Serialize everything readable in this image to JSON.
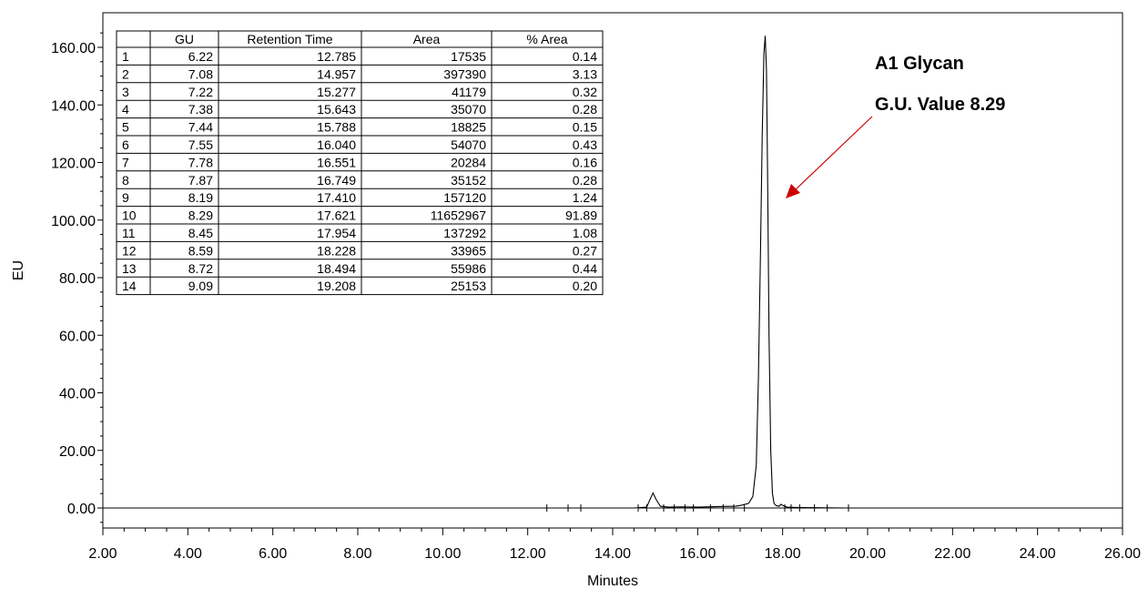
{
  "chart_data": {
    "type": "line",
    "title": "",
    "xlabel": "Minutes",
    "ylabel": "EU",
    "xlim": [
      2.0,
      26.0
    ],
    "ylim": [
      -8.0,
      170.0
    ],
    "x_ticks": [
      "2.00",
      "4.00",
      "6.00",
      "8.00",
      "10.00",
      "12.00",
      "14.00",
      "16.00",
      "18.00",
      "20.00",
      "22.00",
      "24.00",
      "26.00"
    ],
    "x_tick_values": [
      2,
      4,
      6,
      8,
      10,
      12,
      14,
      16,
      18,
      20,
      22,
      24,
      26
    ],
    "y_ticks": [
      "0.00",
      "20.00",
      "40.00",
      "60.00",
      "80.00",
      "100.00",
      "120.00",
      "140.00",
      "160.00"
    ],
    "y_tick_values": [
      0,
      20,
      40,
      60,
      80,
      100,
      120,
      140,
      160
    ],
    "grid": false,
    "series": [
      {
        "color": "#000000",
        "x": [
          2.0,
          11.5,
          12.5,
          14.5,
          14.8,
          14.88,
          14.95,
          15.02,
          15.12,
          15.3,
          15.6,
          16.0,
          16.5,
          16.9,
          17.05,
          17.2,
          17.3,
          17.38,
          17.43,
          17.48,
          17.52,
          17.56,
          17.59,
          17.62,
          17.65,
          17.68,
          17.72,
          17.76,
          17.8,
          17.85,
          17.92,
          17.96,
          18.0,
          18.1,
          18.3,
          18.5,
          19.0,
          19.5,
          26.0
        ],
        "y": [
          0,
          0,
          0,
          0,
          0.3,
          3.0,
          5.2,
          3.0,
          0.6,
          0.3,
          0.4,
          0.3,
          0.5,
          0.6,
          1.0,
          1.6,
          4.0,
          15.0,
          45.0,
          90.0,
          130.0,
          158.0,
          164.0,
          152.0,
          110.0,
          60.0,
          20.0,
          5.0,
          1.5,
          0.8,
          0.6,
          1.3,
          0.9,
          0.3,
          0.2,
          0.15,
          0.05,
          0,
          0
        ]
      }
    ],
    "integration_marks_x": [
      12.45,
      12.95,
      13.25,
      14.6,
      14.8,
      15.2,
      15.45,
      15.7,
      15.9,
      16.3,
      16.6,
      16.85,
      17.1,
      18.05,
      18.2,
      18.4,
      18.75,
      19.05,
      19.55
    ],
    "table": {
      "headers": [
        "",
        "GU",
        "Retention Time",
        "Area",
        "% Area"
      ],
      "rows": [
        [
          "1",
          "6.22",
          "12.785",
          "17535",
          "0.14"
        ],
        [
          "2",
          "7.08",
          "14.957",
          "397390",
          "3.13"
        ],
        [
          "3",
          "7.22",
          "15.277",
          "41179",
          "0.32"
        ],
        [
          "4",
          "7.38",
          "15.643",
          "35070",
          "0.28"
        ],
        [
          "5",
          "7.44",
          "15.788",
          "18825",
          "0.15"
        ],
        [
          "6",
          "7.55",
          "16.040",
          "54070",
          "0.43"
        ],
        [
          "7",
          "7.78",
          "16.551",
          "20284",
          "0.16"
        ],
        [
          "8",
          "7.87",
          "16.749",
          "35152",
          "0.28"
        ],
        [
          "9",
          "8.19",
          "17.410",
          "157120",
          "1.24"
        ],
        [
          "10",
          "8.29",
          "17.621",
          "11652967",
          "91.89"
        ],
        [
          "11",
          "8.45",
          "17.954",
          "137292",
          "1.08"
        ],
        [
          "12",
          "8.59",
          "18.228",
          "33965",
          "0.27"
        ],
        [
          "13",
          "8.72",
          "18.494",
          "55986",
          "0.44"
        ],
        [
          "14",
          "9.09",
          "19.208",
          "25153",
          "0.20"
        ]
      ]
    },
    "annotations": [
      {
        "text": "A1 Glycan"
      },
      {
        "text": "G.U. Value 8.29"
      }
    ],
    "arrow_color": "#cc0000"
  }
}
